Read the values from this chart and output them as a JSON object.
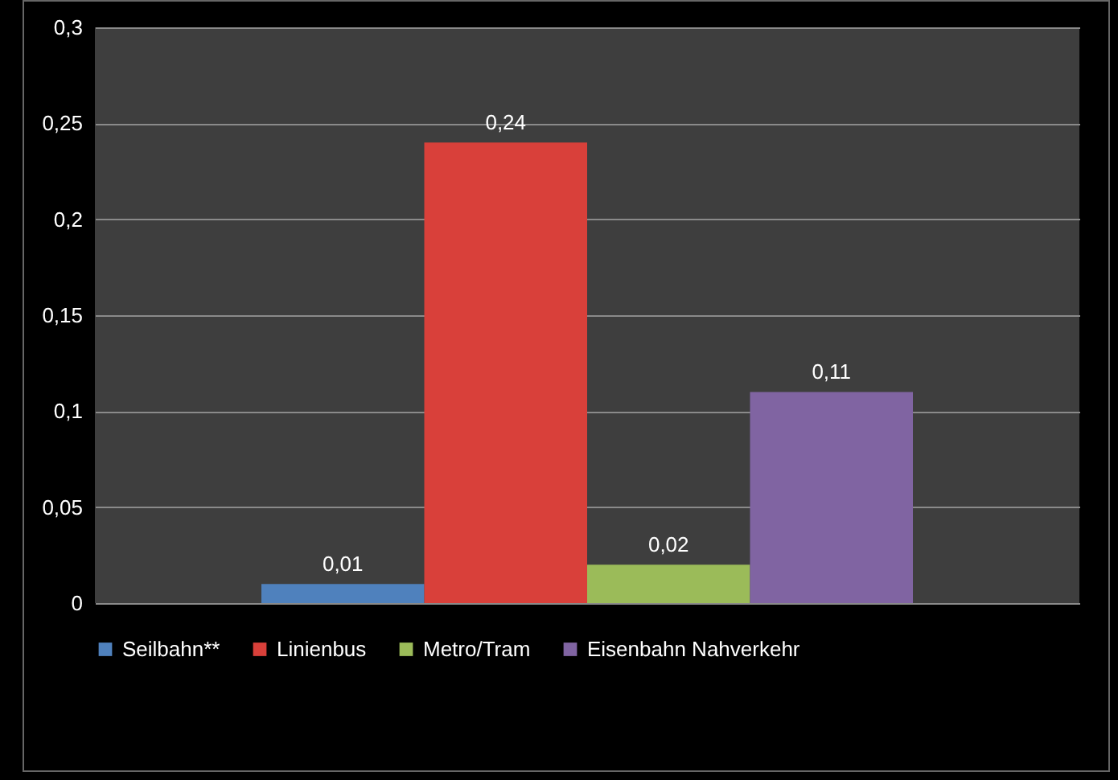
{
  "chart_data": {
    "type": "bar",
    "categories": [
      null
    ],
    "series": [
      {
        "name": "Seilbahn**",
        "color": "#4f81bd",
        "values": [
          0.01
        ],
        "value_labels": [
          "0,01"
        ]
      },
      {
        "name": "Linienbus",
        "color": "#d9403a",
        "values": [
          0.24
        ],
        "value_labels": [
          "0,24"
        ]
      },
      {
        "name": "Metro/Tram",
        "color": "#9bbb59",
        "values": [
          0.02
        ],
        "value_labels": [
          "0,02"
        ]
      },
      {
        "name": "Eisenbahn Nahverkehr",
        "color": "#8064a2",
        "values": [
          0.11
        ],
        "value_labels": [
          "0,11"
        ]
      }
    ],
    "ylim": [
      0,
      0.3
    ],
    "yticks": [
      {
        "value": 0,
        "label": "0"
      },
      {
        "value": 0.05,
        "label": "0,05"
      },
      {
        "value": 0.1,
        "label": "0,1"
      },
      {
        "value": 0.15,
        "label": "0,15"
      },
      {
        "value": 0.2,
        "label": "0,2"
      },
      {
        "value": 0.25,
        "label": "0,25"
      },
      {
        "value": 0.3,
        "label": "0,3"
      }
    ],
    "grid": "y",
    "legend": "bottom",
    "tick_labels": "y"
  }
}
